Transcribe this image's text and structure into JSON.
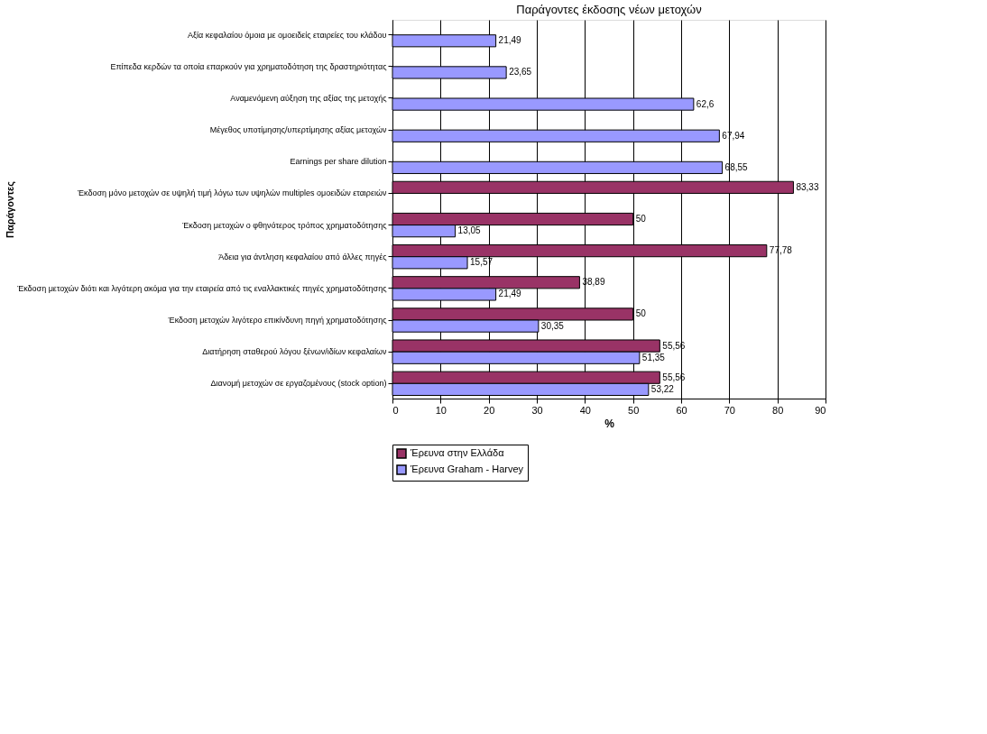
{
  "chart_data": {
    "type": "bar",
    "orientation": "horizontal",
    "title": "Παράγοντες έκδοσης νέων μετοχών",
    "xlabel": "%",
    "ylabel": "Παράγοντες",
    "categories": [
      "Αξία κεφαλαίου όμοια με ομοειδείς εταιρείες του κλάδου",
      "Επίπεδα κερδών τα οποία επαρκούν για χρηματοδότηση της δραστηριότητας",
      "Αναμενόμενη αύξηση της αξίας της μετοχής",
      "Μέγεθος υποτίμησης/υπερτίμησης αξίας μετοχών",
      "Earnings per share dilution",
      "Έκδοση μόνο μετοχών σε υψηλή τιμή λόγω των υψηλών multiples ομοειδών εταιρειών",
      "Έκδοση μετοχών ο φθηνότερος τρόπος χρηματοδότησης",
      "Άδεια για άντληση κεφαλαίου από άλλες πηγές",
      "Έκδοση μετοχών διότι και λιγότερη ακόμα για την εταιρεία από τις εναλλακτικές πηγές χρηματοδότησης",
      "Έκδοση μετοχών λιγότερο επικίνδυνη πηγή χρηματοδότησης",
      "Διατήρηση σταθερού λόγου ξένων/ιδίων κεφαλαίων",
      "Διανομή μετοχών σε εργαζομένους (stock option)"
    ],
    "series": [
      {
        "name": "Έρευνα στην Ελλάδα",
        "color": "#993366",
        "values": [
          null,
          null,
          null,
          null,
          null,
          83.33,
          50,
          77.78,
          38.89,
          50,
          55.56,
          55.56
        ],
        "value_labels": [
          null,
          null,
          null,
          null,
          null,
          "83,33",
          "50",
          "77,78",
          "38,89",
          "50",
          "55,56",
          "55,56"
        ]
      },
      {
        "name": "Έρευνα Graham - Harvey",
        "color": "#9999ff",
        "values": [
          21.49,
          23.65,
          62.6,
          67.94,
          68.55,
          null,
          13.05,
          15.57,
          21.49,
          30.35,
          51.35,
          53.22
        ],
        "value_labels": [
          "21,49",
          "23,65",
          "62,6",
          "67,94",
          "68,55",
          null,
          "13,05",
          "15,57",
          "21,49",
          "30,35",
          "51,35",
          "53,22"
        ]
      }
    ],
    "xlim": [
      0,
      90
    ],
    "xticks": [
      0,
      10,
      20,
      30,
      40,
      50,
      60,
      70,
      80,
      90
    ],
    "grid": "x",
    "legend": "bottom left"
  }
}
